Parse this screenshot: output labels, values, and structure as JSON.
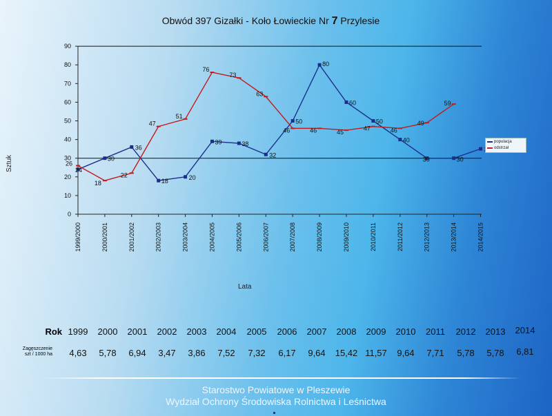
{
  "chart_data": {
    "type": "line",
    "title_pre": "Obwód 397 Gizałki - Koło Łowieckie Nr ",
    "title_num": "7",
    "title_post": " Przylesie",
    "xlabel": "Lata",
    "ylabel": "Sztuk",
    "ylim": [
      0,
      90
    ],
    "yticks": [
      0,
      10,
      20,
      30,
      40,
      50,
      60,
      70,
      80,
      90
    ],
    "categories": [
      "1999/2000",
      "2000/2001",
      "2001/2002",
      "2002/2003",
      "2003/2004",
      "2004/2005",
      "2005/2006",
      "2006/2007",
      "2007/2008",
      "2008/2009",
      "2009/2010",
      "2010/2011",
      "2011/2012",
      "2012/2013",
      "2013/2014",
      "2014/2015"
    ],
    "series": [
      {
        "name": "populacja",
        "color": "#1a2f8a",
        "marker": "square",
        "values": [
          24,
          30,
          36,
          18,
          20,
          39,
          38,
          32,
          50,
          80,
          60,
          50,
          40,
          30,
          30,
          35
        ]
      },
      {
        "name": "odstrzał",
        "color": "#c41a1a",
        "marker": "dash",
        "values": [
          26,
          18,
          22,
          47,
          51,
          76,
          73,
          63,
          46,
          46,
          45,
          47,
          46,
          49,
          59,
          null
        ]
      }
    ],
    "reference_lines": [
      30,
      90
    ],
    "legend_position": "right"
  },
  "table": {
    "year_header": "Rok",
    "density_header_line1": "Zagęszczenie",
    "density_header_line2": "szt / 1000 ha",
    "years": [
      "1999",
      "2000",
      "2001",
      "2002",
      "2003",
      "2004",
      "2005",
      "2006",
      "2007",
      "2008",
      "2009",
      "2010",
      "2011",
      "2012",
      "2013",
      "2014"
    ],
    "density": [
      "4,63",
      "5,78",
      "6,94",
      "3,47",
      "3,86",
      "7,52",
      "7,32",
      "6,17",
      "9,64",
      "15,42",
      "11,57",
      "9,64",
      "7,71",
      "5,78",
      "5,78",
      "6,81"
    ]
  },
  "footer": {
    "line1": "Starostwo Powiatowe w Pleszewie",
    "line2": "Wydział Ochrony Środowiska Rolnictwa i Leśnictwa"
  }
}
